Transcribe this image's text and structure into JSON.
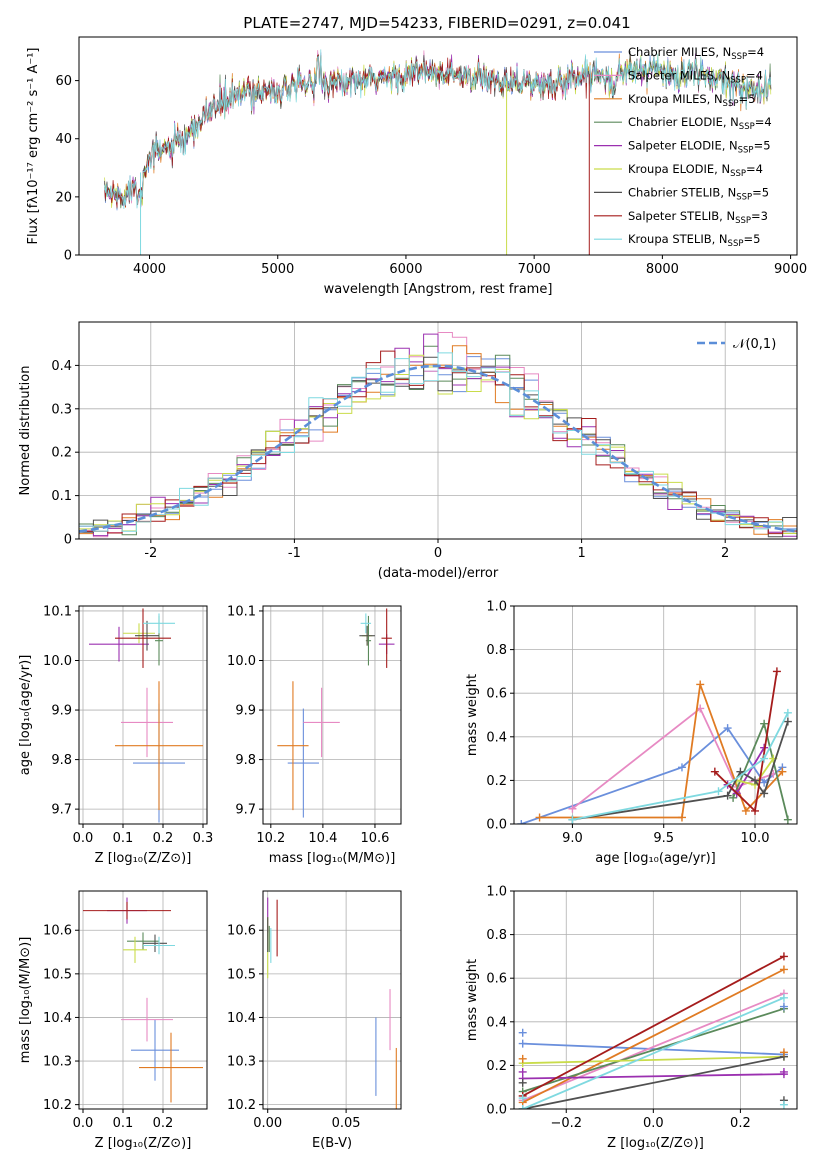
{
  "figure_title": "PLATE=2747, MJD=54233, FIBERID=0291, z=0.041",
  "colors": {
    "Chabrier MILES": "#6a8fdc",
    "Salpeter MILES": "#e78ac3",
    "Kroupa MILES": "#e07b23",
    "Chabrier ELODIE": "#5b8a5b",
    "Salpeter ELODIE": "#9b30b0",
    "Kroupa ELODIE": "#c9dc4a",
    "Chabrier STELIB": "#505050",
    "Salpeter STELIB": "#a51c1c",
    "Kroupa STELIB": "#7fd9e0"
  },
  "models": [
    "Chabrier MILES",
    "Salpeter MILES",
    "Kroupa MILES",
    "Chabrier ELODIE",
    "Salpeter ELODIE",
    "Kroupa ELODIE",
    "Chabrier STELIB",
    "Salpeter STELIB",
    "Kroupa STELIB"
  ],
  "chart_data": [
    {
      "id": "spectrum",
      "type": "line",
      "xlabel": "wavelength [Angstrom, rest frame]",
      "ylabel": "Flux [fλ10⁻¹⁷ erg cm⁻² s⁻¹ A⁻¹]",
      "xlim": [
        3450,
        9050
      ],
      "ylim": [
        0,
        75
      ],
      "xticks": [
        4000,
        5000,
        6000,
        7000,
        8000,
        9000
      ],
      "yticks": [
        0,
        20,
        40,
        60
      ],
      "legend_position": "right",
      "legend": [
        {
          "label": "Chabrier MILES, N",
          "sub": "SSP",
          "val": "=4"
        },
        {
          "label": "Salpeter MILES, N",
          "sub": "SSP",
          "val": "=4"
        },
        {
          "label": "Kroupa MILES, N",
          "sub": "SSP",
          "val": "=5"
        },
        {
          "label": "Chabrier ELODIE, N",
          "sub": "SSP",
          "val": "=4"
        },
        {
          "label": "Salpeter ELODIE, N",
          "sub": "SSP",
          "val": "=5"
        },
        {
          "label": "Kroupa ELODIE, N",
          "sub": "SSP",
          "val": "=4"
        },
        {
          "label": "Chabrier STELIB, N",
          "sub": "SSP",
          "val": "=5"
        },
        {
          "label": "Salpeter STELIB, N",
          "sub": "SSP",
          "val": "=3"
        },
        {
          "label": "Kroupa STELIB, N",
          "sub": "SSP",
          "val": "=5"
        }
      ],
      "continuum": [
        [
          3650,
          22
        ],
        [
          3750,
          20
        ],
        [
          3850,
          22
        ],
        [
          3950,
          30
        ],
        [
          4050,
          35
        ],
        [
          4150,
          37
        ],
        [
          4300,
          40
        ],
        [
          4400,
          46
        ],
        [
          4500,
          51
        ],
        [
          4700,
          55
        ],
        [
          4900,
          57
        ],
        [
          5100,
          57
        ],
        [
          5300,
          60
        ],
        [
          5500,
          59
        ],
        [
          5700,
          60
        ],
        [
          5900,
          61
        ],
        [
          6100,
          63
        ],
        [
          6300,
          62
        ],
        [
          6500,
          61
        ],
        [
          6700,
          60
        ],
        [
          6900,
          60
        ],
        [
          7100,
          58
        ],
        [
          7300,
          61
        ],
        [
          7500,
          63
        ],
        [
          7700,
          63
        ],
        [
          7900,
          64
        ],
        [
          8100,
          62
        ],
        [
          8300,
          62
        ],
        [
          8500,
          60
        ],
        [
          8700,
          58
        ],
        [
          8850,
          57
        ]
      ],
      "series_ranges": [
        [
          3650,
          8850
        ],
        [
          3650,
          8850
        ],
        [
          3650,
          8850
        ],
        [
          3650,
          8850
        ],
        [
          3650,
          8850
        ],
        [
          3650,
          8850
        ],
        [
          3650,
          8850
        ],
        [
          3650,
          7420
        ],
        [
          3650,
          8850
        ]
      ],
      "drops": [
        [
          3930,
          5
        ],
        [
          6785,
          5
        ],
        [
          7430,
          7
        ]
      ]
    },
    {
      "id": "residuals",
      "type": "histogram",
      "xlabel": "(data-model)/error",
      "ylabel": "Normed distribution",
      "xlim": [
        -2.5,
        2.5
      ],
      "ylim": [
        0,
        0.5
      ],
      "xticks": [
        -2,
        -1,
        0,
        1,
        2
      ],
      "yticks": [
        0,
        0.1,
        0.2,
        0.3,
        0.4
      ],
      "bin_width": 0.1,
      "gaussian_label": "𝒩(0,1)",
      "legend_position": "upper right",
      "grid": true
    },
    {
      "id": "age-vs-Z",
      "type": "scatter",
      "xlabel": "Z [log₁₀(Z/Z⊙)]",
      "ylabel": "age  [log₁₀(age/yr)]",
      "xlim": [
        -0.01,
        0.31
      ],
      "ylim": [
        9.67,
        10.11
      ],
      "xticks": [
        0.0,
        0.1,
        0.2,
        0.3
      ],
      "xtick_labels": [
        "0.0",
        "0.1",
        "0.2",
        "0.3"
      ],
      "yticks": [
        9.7,
        9.8,
        9.9,
        10.0,
        10.1
      ],
      "ytick_labels": [
        "9.7",
        "9.8",
        "9.9",
        "10.0",
        "10.1"
      ],
      "grid": true,
      "points": [
        {
          "x": 0.19,
          "xerr": 0.065,
          "y": 9.793,
          "yerr": 0.12
        },
        {
          "x": 0.16,
          "xerr": 0.065,
          "y": 9.875,
          "yerr": 0.07
        },
        {
          "x": 0.19,
          "xerr": 0.11,
          "y": 9.828,
          "yerr": 0.13
        },
        {
          "x": 0.19,
          "xerr": 0.01,
          "y": 10.04,
          "yerr": 0.05
        },
        {
          "x": 0.09,
          "xerr": 0.075,
          "y": 10.033,
          "yerr": 0.035
        },
        {
          "x": 0.14,
          "xerr": 0.04,
          "y": 10.055,
          "yerr": 0.02
        },
        {
          "x": 0.16,
          "xerr": 0.03,
          "y": 10.05,
          "yerr": 0.03
        },
        {
          "x": 0.15,
          "xerr": 0.07,
          "y": 10.045,
          "yerr": 0.06
        },
        {
          "x": 0.19,
          "xerr": 0.04,
          "y": 10.075,
          "yerr": 0.02
        }
      ]
    },
    {
      "id": "age-vs-mass",
      "type": "scatter",
      "xlabel": "mass [log₁₀(M/M⊙)]",
      "ylabel": "",
      "xlim": [
        10.17,
        10.7
      ],
      "ylim": [
        9.67,
        10.11
      ],
      "xticks": [
        10.2,
        10.4,
        10.6
      ],
      "xtick_labels": [
        "10.2",
        "10.4",
        "10.6"
      ],
      "yticks": [
        9.7,
        9.8,
        9.9,
        10.0,
        10.1
      ],
      "ytick_labels": [
        "9.7",
        "9.8",
        "9.9",
        "10.0",
        "10.1"
      ],
      "grid": true,
      "points": [
        {
          "x": 10.325,
          "xerr": 0.06,
          "y": 9.793,
          "yerr": 0.11
        },
        {
          "x": 10.395,
          "xerr": 0.07,
          "y": 9.875,
          "yerr": 0.07
        },
        {
          "x": 10.285,
          "xerr": 0.06,
          "y": 9.828,
          "yerr": 0.13
        },
        {
          "x": 10.575,
          "xerr": 0.01,
          "y": 10.04,
          "yerr": 0.05
        },
        {
          "x": 10.645,
          "xerr": 0.03,
          "y": 10.033,
          "yerr": 0.02
        },
        {
          "x": 10.57,
          "xerr": 0.02,
          "y": 10.05,
          "yerr": 0.02
        },
        {
          "x": 10.57,
          "xerr": 0.03,
          "y": 10.05,
          "yerr": 0.02
        },
        {
          "x": 10.645,
          "xerr": 0.02,
          "y": 10.045,
          "yerr": 0.06
        },
        {
          "x": 10.565,
          "xerr": 0.02,
          "y": 10.075,
          "yerr": 0.02
        }
      ]
    },
    {
      "id": "massweight-vs-age",
      "type": "line",
      "xlabel": "age  [log₁₀(age/yr)]",
      "ylabel": "mass weight",
      "xlim": [
        8.68,
        10.23
      ],
      "ylim": [
        0,
        1
      ],
      "xticks": [
        9.0,
        9.5,
        10.0
      ],
      "xtick_labels": [
        "9.0",
        "9.5",
        "10.0"
      ],
      "yticks": [
        0,
        0.2,
        0.4,
        0.6,
        0.8,
        1.0
      ],
      "ytick_labels": [
        "0.0",
        "0.2",
        "0.4",
        "0.6",
        "0.8",
        "1.0"
      ],
      "grid": true,
      "series": [
        {
          "x": [
            8.72,
            9.6,
            9.85,
            10.05,
            10.15
          ],
          "y": [
            0.0,
            0.26,
            0.44,
            0.19,
            0.26
          ]
        },
        {
          "x": [
            9.0,
            9.7,
            9.9,
            10.1
          ],
          "y": [
            0.07,
            0.53,
            0.17,
            0.23
          ]
        },
        {
          "x": [
            8.82,
            9.6,
            9.7,
            9.95,
            10.15
          ],
          "y": [
            0.03,
            0.03,
            0.64,
            0.06,
            0.24
          ]
        },
        {
          "x": [
            9.88,
            10.05,
            10.18
          ],
          "y": [
            0.12,
            0.46,
            0.02
          ]
        },
        {
          "x": [
            9.85,
            9.9,
            10.05
          ],
          "y": [
            0.18,
            0.14,
            0.35
          ]
        },
        {
          "x": [
            9.9,
            10.0,
            10.1
          ],
          "y": [
            0.2,
            0.18,
            0.3
          ]
        },
        {
          "x": [
            9.0,
            9.85,
            9.92,
            10.0,
            10.05,
            10.18
          ],
          "y": [
            0.02,
            0.13,
            0.24,
            0.2,
            0.14,
            0.47
          ]
        },
        {
          "x": [
            9.78,
            10.0,
            10.12
          ],
          "y": [
            0.24,
            0.06,
            0.7
          ]
        },
        {
          "x": [
            9.0,
            9.8,
            10.05,
            10.18
          ],
          "y": [
            0.02,
            0.15,
            0.3,
            0.51
          ]
        }
      ]
    },
    {
      "id": "mass-vs-Z",
      "type": "scatter",
      "xlabel": "Z [log₁₀(Z/Z⊙)]",
      "ylabel": "mass [log₁₀(M/M⊙)]",
      "xlim": [
        -0.01,
        0.31
      ],
      "ylim": [
        10.19,
        10.69
      ],
      "xticks": [
        0.0,
        0.1,
        0.2
      ],
      "xtick_labels": [
        "0.0",
        "0.1",
        "0.2"
      ],
      "yticks": [
        10.2,
        10.3,
        10.4,
        10.5,
        10.6
      ],
      "ytick_labels": [
        "10.2",
        "10.3",
        "10.4",
        "10.5",
        "10.6"
      ],
      "grid": true,
      "points": [
        {
          "x": 0.18,
          "xerr": 0.06,
          "y": 10.325,
          "yerr": 0.07
        },
        {
          "x": 0.16,
          "xerr": 0.065,
          "y": 10.395,
          "yerr": 0.05
        },
        {
          "x": 0.22,
          "xerr": 0.08,
          "y": 10.285,
          "yerr": 0.08
        },
        {
          "x": 0.15,
          "xerr": 0.04,
          "y": 10.575,
          "yerr": 0.02
        },
        {
          "x": 0.11,
          "xerr": 0.05,
          "y": 10.645,
          "yerr": 0.03
        },
        {
          "x": 0.13,
          "xerr": 0.03,
          "y": 10.555,
          "yerr": 0.03
        },
        {
          "x": 0.18,
          "xerr": 0.03,
          "y": 10.57,
          "yerr": 0.02
        },
        {
          "x": 0.11,
          "xerr": 0.11,
          "y": 10.645,
          "yerr": 0.02
        },
        {
          "x": 0.19,
          "xerr": 0.04,
          "y": 10.565,
          "yerr": 0.02
        }
      ]
    },
    {
      "id": "mass-vs-ebv",
      "type": "scatter",
      "xlabel": "E(B-V)",
      "ylabel": "",
      "xlim": [
        -0.003,
        0.085
      ],
      "ylim": [
        10.19,
        10.69
      ],
      "xticks": [
        0.0,
        0.05
      ],
      "xtick_labels": [
        "0.00",
        "0.05"
      ],
      "yticks": [
        10.2,
        10.3,
        10.4,
        10.5,
        10.6
      ],
      "ytick_labels": [
        "10.2",
        "10.3",
        "10.4",
        "10.5",
        "10.6"
      ],
      "grid": true,
      "points": [
        {
          "x": 0.069,
          "xerr": 0,
          "y": 10.31,
          "yerr": 0.09
        },
        {
          "x": 0.078,
          "xerr": 0,
          "y": 10.395,
          "yerr": 0.07
        },
        {
          "x": 0.082,
          "xerr": 0,
          "y": 10.26,
          "yerr": 0.07
        },
        {
          "x": 0.001,
          "xerr": 0,
          "y": 10.58,
          "yerr": 0.03
        },
        {
          "x": 0.0,
          "xerr": 0,
          "y": 10.635,
          "yerr": 0.04
        },
        {
          "x": 0.0,
          "xerr": 0,
          "y": 10.56,
          "yerr": 0.07
        },
        {
          "x": 0.0,
          "xerr": 0,
          "y": 10.59,
          "yerr": 0.04
        },
        {
          "x": 0.006,
          "xerr": 0,
          "y": 10.605,
          "yerr": 0.065
        },
        {
          "x": 0.002,
          "xerr": 0,
          "y": 10.565,
          "yerr": 0.04
        }
      ]
    },
    {
      "id": "massweight-vs-Z",
      "type": "line",
      "xlabel": "Z [log₁₀(Z/Z⊙)]",
      "ylabel": "mass weight",
      "xlim": [
        -0.32,
        0.33
      ],
      "ylim": [
        0,
        1
      ],
      "xticks": [
        -0.2,
        0.0,
        0.2
      ],
      "xtick_labels": [
        "−0.2",
        "0.0",
        "0.2"
      ],
      "yticks": [
        0,
        0.2,
        0.4,
        0.6,
        0.8,
        1.0
      ],
      "ytick_labels": [
        "0.0",
        "0.2",
        "0.4",
        "0.6",
        "0.8",
        "1.0"
      ],
      "grid": true,
      "series": [
        {
          "x": [
            -0.3,
            0.3
          ],
          "y": [
            0.3,
            0.25
          ]
        },
        {
          "x": [
            -0.3,
            0.3
          ],
          "y": [
            0.04,
            0.53
          ]
        },
        {
          "x": [
            -0.3,
            0.3
          ],
          "y": [
            0.03,
            0.64
          ]
        },
        {
          "x": [
            -0.3,
            0.3
          ],
          "y": [
            0.08,
            0.46
          ]
        },
        {
          "x": [
            -0.3,
            0.3
          ],
          "y": [
            0.14,
            0.16
          ]
        },
        {
          "x": [
            -0.3,
            0.3
          ],
          "y": [
            0.21,
            0.24
          ]
        },
        {
          "x": [
            -0.3,
            0.3
          ],
          "y": [
            0.0,
            0.24
          ]
        },
        {
          "x": [
            -0.3,
            0.3
          ],
          "y": [
            0.06,
            0.7
          ]
        },
        {
          "x": [
            -0.3,
            0.3
          ],
          "y": [
            0.0,
            0.51
          ]
        }
      ],
      "extra_points": [
        {
          "x": -0.3,
          "y": [
            0.35,
            0.23,
            0.17,
            0.12,
            0.05
          ]
        },
        {
          "x": 0.3,
          "y": [
            0.47,
            0.26,
            0.17,
            0.04,
            0.02
          ]
        }
      ]
    }
  ]
}
